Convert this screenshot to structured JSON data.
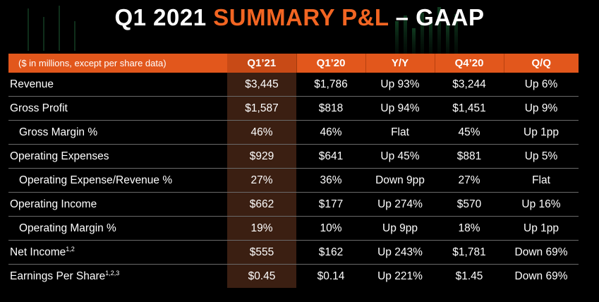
{
  "title": {
    "prefix": "Q1 2021 ",
    "highlight": "SUMMARY P&L",
    "suffix": " – GAAP"
  },
  "colors": {
    "accent": "#f26522",
    "header_bar": "#e2571c",
    "highlight_column": "#3b1f12",
    "background": "#000000"
  },
  "table": {
    "unit_note": "($ in millions, except per share data)",
    "columns": [
      "Q1’21",
      "Q1’20",
      "Y/Y",
      "Q4’20",
      "Q/Q"
    ],
    "rows": [
      {
        "label": "Revenue",
        "sup": "",
        "values": [
          "$3,445",
          "$1,786",
          "Up 93%",
          "$3,244",
          "Up 6%"
        ]
      },
      {
        "label": "Gross Profit",
        "sup": "",
        "values": [
          "$1,587",
          "$818",
          "Up 94%",
          "$1,451",
          "Up 9%"
        ]
      },
      {
        "label": "Gross Margin %",
        "sup": "",
        "values": [
          "46%",
          "46%",
          "Flat",
          "45%",
          "Up 1pp"
        ]
      },
      {
        "label": "Operating Expenses",
        "sup": "",
        "values": [
          "$929",
          "$641",
          "Up 45%",
          "$881",
          "Up 5%"
        ]
      },
      {
        "label": "Operating Expense/Revenue %",
        "sup": "",
        "values": [
          "27%",
          "36%",
          "Down 9pp",
          "27%",
          "Flat"
        ]
      },
      {
        "label": "Operating Income",
        "sup": "",
        "values": [
          "$662",
          "$177",
          "Up 274%",
          "$570",
          "Up 16%"
        ]
      },
      {
        "label": "Operating Margin %",
        "sup": "",
        "values": [
          "19%",
          "10%",
          "Up 9pp",
          "18%",
          "Up 1pp"
        ]
      },
      {
        "label": "Net Income",
        "sup": "1,2",
        "values": [
          "$555",
          "$162",
          "Up 243%",
          "$1,781",
          "Down 69%"
        ]
      },
      {
        "label": "Earnings Per Share",
        "sup": "1,2,3",
        "values": [
          "$0.45",
          "$0.14",
          "Up 221%",
          "$1.45",
          "Down 69%"
        ]
      }
    ]
  }
}
